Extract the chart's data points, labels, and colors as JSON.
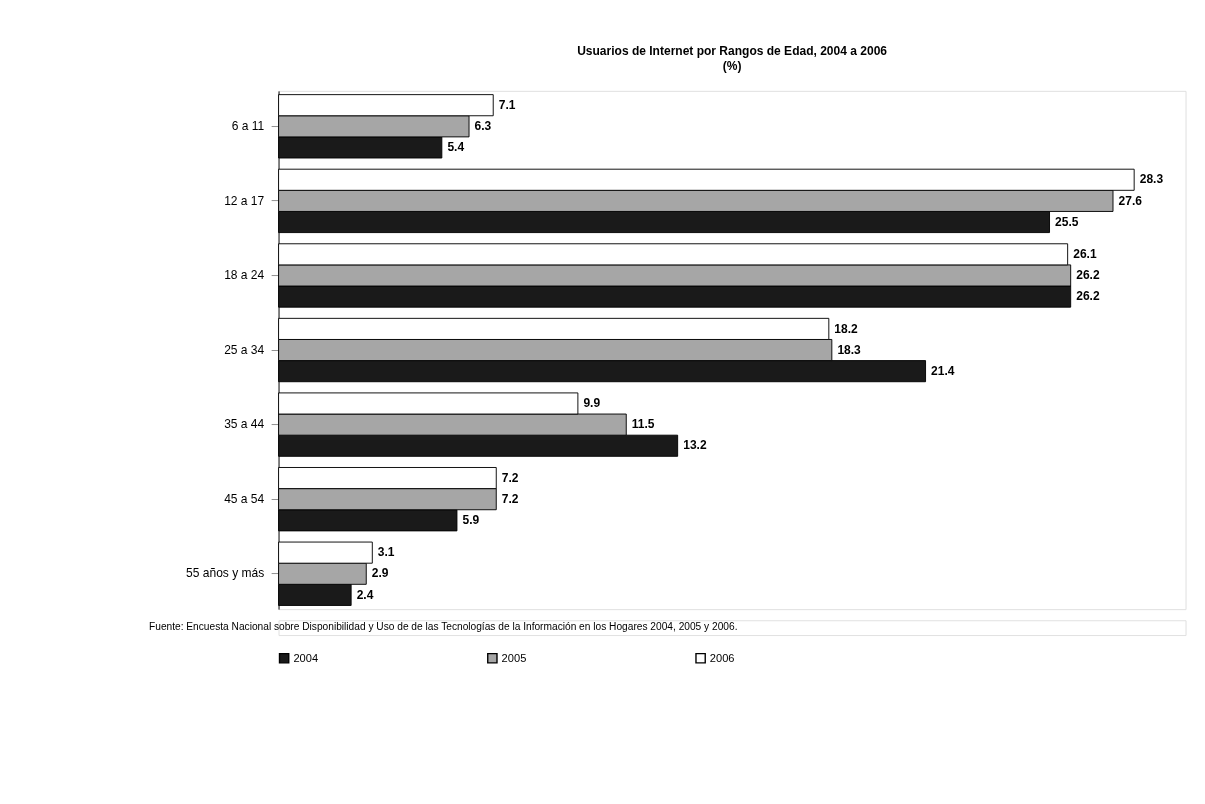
{
  "chart_data": {
    "type": "bar",
    "orientation": "horizontal",
    "title": "Usuarios de Internet por Rangos de Edad, 2004 a 2006",
    "subtitle": "(%)",
    "categories": [
      "6 a 11",
      "12 a 17",
      "18 a 24",
      "25 a 34",
      "35 a 44",
      "45 a 54",
      "55 años y más"
    ],
    "series": [
      {
        "name": "2004",
        "color": "#1a1a1a",
        "values": [
          5.4,
          25.5,
          26.2,
          21.4,
          13.2,
          5.9,
          2.4
        ]
      },
      {
        "name": "2005",
        "color": "#a6a6a6",
        "values": [
          6.3,
          27.6,
          26.2,
          18.3,
          11.5,
          7.2,
          2.9
        ]
      },
      {
        "name": "2006",
        "color": "#ffffff",
        "values": [
          7.1,
          28.3,
          26.1,
          18.2,
          9.9,
          7.2,
          3.1
        ]
      }
    ],
    "data_labels": true,
    "legend": "bottom",
    "grid": false,
    "annotations": [
      "Fuente: Encuesta Nacional sobre Disponibilidad y Uso de de las Tecnologías de la Información en los Hogares 2004, 2005 y 2006."
    ]
  }
}
